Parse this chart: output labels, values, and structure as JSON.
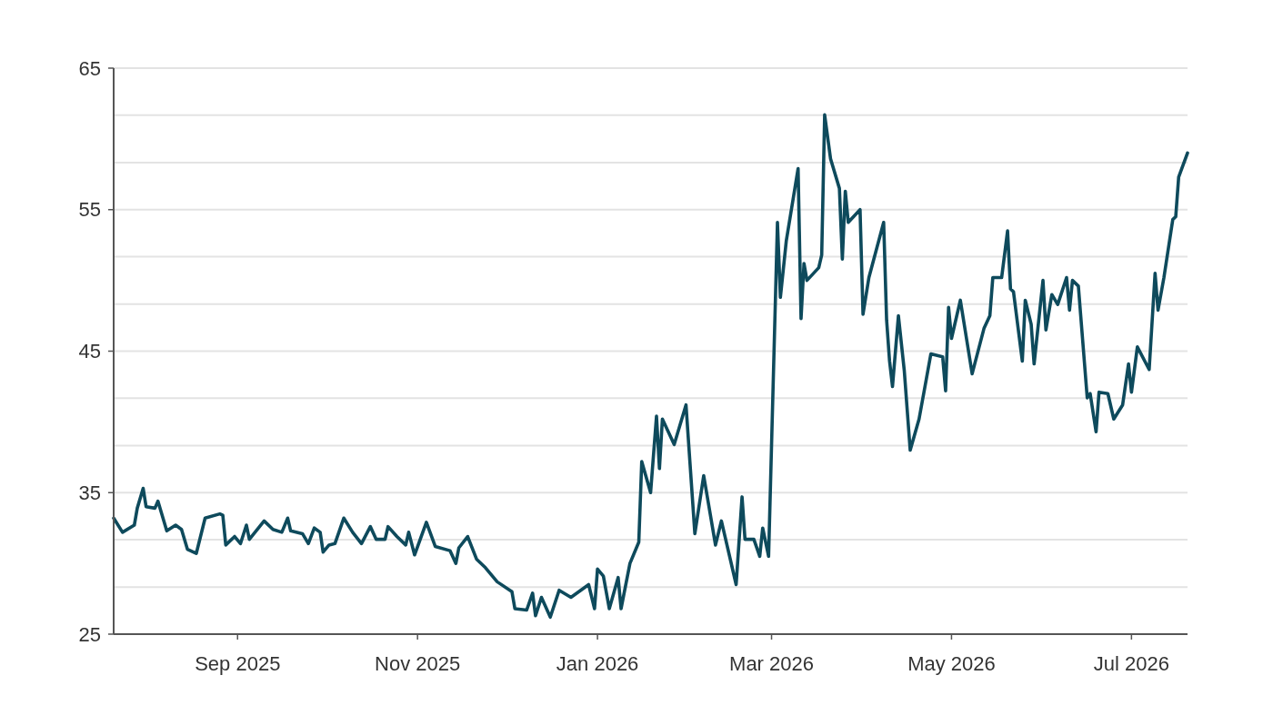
{
  "chart_data": {
    "type": "line",
    "x": [
      "2025-07-21",
      "2025-07-24",
      "2025-07-28",
      "2025-07-29",
      "2025-07-31",
      "2025-08-01",
      "2025-08-04",
      "2025-08-05",
      "2025-08-08",
      "2025-08-11",
      "2025-08-13",
      "2025-08-15",
      "2025-08-18",
      "2025-08-21",
      "2025-08-26",
      "2025-08-27",
      "2025-08-28",
      "2025-08-31",
      "2025-09-02",
      "2025-09-04",
      "2025-09-05",
      "2025-09-10",
      "2025-09-13",
      "2025-09-16",
      "2025-09-18",
      "2025-09-19",
      "2025-09-23",
      "2025-09-25",
      "2025-09-27",
      "2025-09-29",
      "2025-09-30",
      "2025-10-02",
      "2025-10-04",
      "2025-10-07",
      "2025-10-10",
      "2025-10-13",
      "2025-10-16",
      "2025-10-18",
      "2025-10-21",
      "2025-10-22",
      "2025-10-25",
      "2025-10-28",
      "2025-10-29",
      "2025-10-31",
      "2025-11-04",
      "2025-11-07",
      "2025-11-12",
      "2025-11-14",
      "2025-11-15",
      "2025-11-18",
      "2025-11-21",
      "2025-11-24",
      "2025-11-28",
      "2025-12-03",
      "2025-12-04",
      "2025-12-08",
      "2025-12-10",
      "2025-12-11",
      "2025-12-13",
      "2025-12-16",
      "2025-12-19",
      "2025-12-23",
      "2025-12-29",
      "2025-12-31",
      "2026-01-01",
      "2026-01-03",
      "2026-01-05",
      "2026-01-08",
      "2026-01-09",
      "2026-01-12",
      "2026-01-15",
      "2026-01-16",
      "2026-01-19",
      "2026-01-21",
      "2026-01-22",
      "2026-01-23",
      "2026-01-27",
      "2026-01-31",
      "2026-02-03",
      "2026-02-06",
      "2026-02-10",
      "2026-02-12",
      "2026-02-17",
      "2026-02-19",
      "2026-02-20",
      "2026-02-23",
      "2026-02-25",
      "2026-02-26",
      "2026-02-28",
      "2026-03-03",
      "2026-03-04",
      "2026-03-06",
      "2026-03-10",
      "2026-03-11",
      "2026-03-12",
      "2026-03-13",
      "2026-03-17",
      "2026-03-18",
      "2026-03-19",
      "2026-03-21",
      "2026-03-24",
      "2026-03-25",
      "2026-03-26",
      "2026-03-27",
      "2026-03-31",
      "2026-04-01",
      "2026-04-03",
      "2026-04-08",
      "2026-04-09",
      "2026-04-10",
      "2026-04-11",
      "2026-04-13",
      "2026-04-15",
      "2026-04-17",
      "2026-04-20",
      "2026-04-24",
      "2026-04-28",
      "2026-04-29",
      "2026-04-30",
      "2026-05-01",
      "2026-05-04",
      "2026-05-08",
      "2026-05-12",
      "2026-05-14",
      "2026-05-15",
      "2026-05-18",
      "2026-05-20",
      "2026-05-21",
      "2026-05-22",
      "2026-05-25",
      "2026-05-26",
      "2026-05-28",
      "2026-05-29",
      "2026-06-01",
      "2026-06-02",
      "2026-06-04",
      "2026-06-06",
      "2026-06-09",
      "2026-06-10",
      "2026-06-11",
      "2026-06-13",
      "2026-06-16",
      "2026-06-17",
      "2026-06-19",
      "2026-06-20",
      "2026-06-23",
      "2026-06-25",
      "2026-06-28",
      "2026-06-30",
      "2026-07-01",
      "2026-07-03",
      "2026-07-07",
      "2026-07-09",
      "2026-07-10",
      "2026-07-12",
      "2026-07-15",
      "2026-07-16",
      "2026-07-17",
      "2026-07-20"
    ],
    "series": [
      {
        "color": "#0e4a5c",
        "values": [
          33.2,
          32.2,
          32.7,
          33.9,
          35.3,
          34.0,
          33.9,
          34.4,
          32.3,
          32.7,
          32.4,
          31.0,
          30.7,
          33.2,
          33.5,
          33.4,
          31.3,
          31.9,
          31.4,
          32.7,
          31.7,
          33.0,
          32.4,
          32.2,
          33.2,
          32.3,
          32.1,
          31.4,
          32.5,
          32.2,
          30.8,
          31.3,
          31.4,
          33.2,
          32.2,
          31.4,
          32.6,
          31.7,
          31.7,
          32.6,
          31.9,
          31.3,
          32.2,
          30.6,
          32.9,
          31.2,
          30.9,
          30.0,
          31.1,
          31.9,
          30.3,
          29.7,
          28.7,
          28.0,
          26.8,
          26.7,
          27.9,
          26.3,
          27.6,
          26.2,
          28.1,
          27.6,
          28.5,
          26.8,
          29.6,
          29.1,
          26.8,
          29.0,
          26.8,
          30.0,
          31.5,
          37.2,
          35.0,
          40.4,
          36.7,
          40.2,
          38.4,
          41.2,
          32.1,
          36.2,
          31.3,
          33.0,
          28.5,
          34.7,
          31.7,
          31.7,
          30.5,
          32.5,
          30.5,
          54.1,
          48.8,
          52.8,
          57.9,
          47.3,
          51.2,
          50.0,
          50.9,
          51.8,
          61.7,
          58.6,
          56.5,
          51.5,
          56.3,
          54.1,
          55.0,
          47.6,
          50.2,
          54.1,
          47.2,
          44.3,
          42.5,
          47.5,
          43.6,
          38.0,
          40.2,
          44.8,
          44.6,
          42.2,
          48.1,
          45.9,
          48.6,
          43.4,
          46.6,
          47.5,
          50.2,
          50.2,
          53.5,
          49.4,
          49.2,
          44.3,
          48.6,
          46.9,
          44.1,
          50.0,
          46.5,
          49.0,
          48.3,
          50.2,
          47.9,
          50.0,
          49.6,
          41.7,
          42.0,
          39.3,
          42.1,
          42.0,
          40.2,
          41.2,
          44.1,
          42.1,
          45.3,
          43.7,
          50.5,
          47.9,
          50.2,
          54.3,
          54.5,
          57.3,
          59.0
        ]
      }
    ],
    "xlim": [
      "2025-07-21",
      "2026-07-20"
    ],
    "xticks": [
      {
        "value": "2025-09-01",
        "label": "Sep 2025"
      },
      {
        "value": "2025-11-01",
        "label": "Nov 2025"
      },
      {
        "value": "2026-01-01",
        "label": "Jan 2026"
      },
      {
        "value": "2026-03-01",
        "label": "Mar 2026"
      },
      {
        "value": "2026-05-01",
        "label": "May 2026"
      },
      {
        "value": "2026-07-01",
        "label": "Jul 2026"
      }
    ],
    "ylim": [
      25,
      65
    ],
    "yticks": [
      25,
      {
        "value": 28.33,
        "label": null
      },
      {
        "value": 31.67,
        "label": null
      },
      35,
      {
        "value": 38.33,
        "label": null
      },
      {
        "value": 41.67,
        "label": null
      },
      45,
      {
        "value": 48.33,
        "label": null
      },
      {
        "value": 51.67,
        "label": null
      },
      55,
      {
        "value": 58.33,
        "label": null
      },
      {
        "value": 61.67,
        "label": null
      },
      65
    ],
    "grid": "y",
    "marker": "none",
    "line_style": "solid"
  }
}
